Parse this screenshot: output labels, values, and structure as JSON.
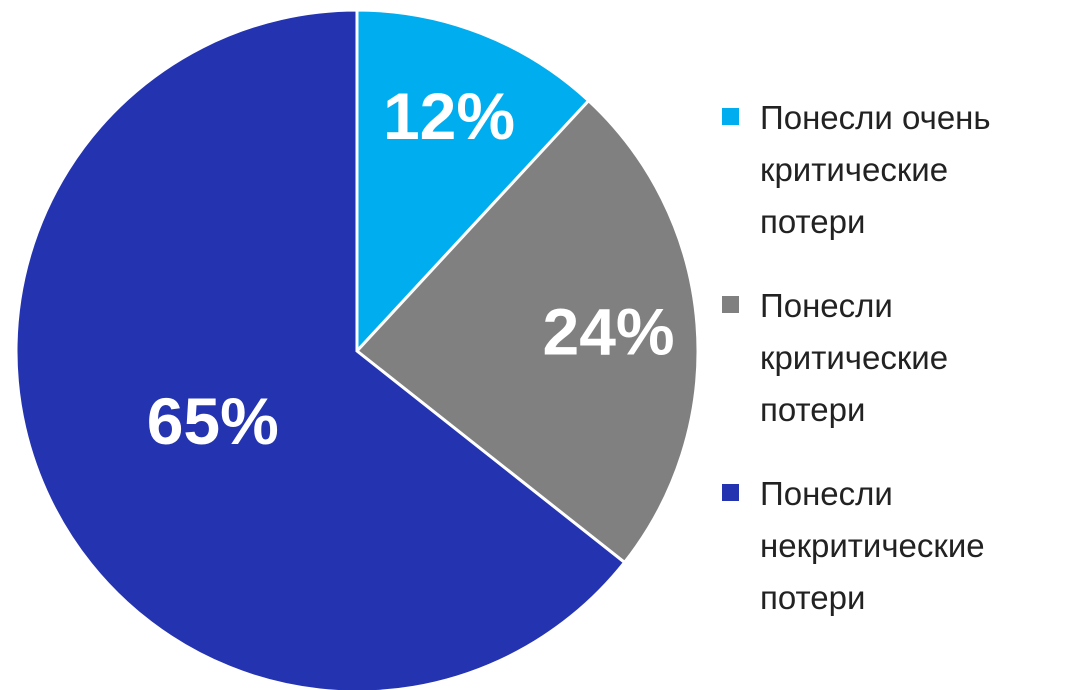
{
  "chart_data": {
    "type": "pie",
    "categories": [
      "Понесли очень критические потери",
      "Понесли критические потери",
      "Понесли некритические потери"
    ],
    "values": [
      12,
      24,
      65
    ],
    "value_labels": [
      "12%",
      "24%",
      "65%"
    ],
    "colors": [
      "#00aeef",
      "#808080",
      "#2433b0"
    ],
    "legend": "right"
  }
}
